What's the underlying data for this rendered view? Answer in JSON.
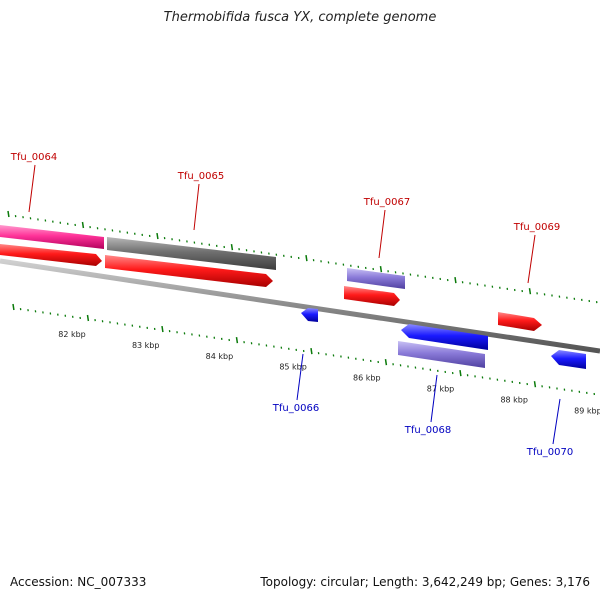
{
  "title": "Thermobifida fusca YX, complete genome",
  "footer": {
    "accession": "Accession: NC_007333",
    "summary": "Topology: circular; Length: 3,642,249 bp; Genes: 3,176"
  },
  "colors": {
    "forward_label": "#c00000",
    "reverse_label": "#0000c0",
    "tick": "#0a7a0a",
    "backbone": "#888888",
    "cds": "#ff1a1a",
    "gene_forward": "#8a7ad8",
    "gene_reverse": "#1a1aff",
    "pink": "#ff3399",
    "gray": "#707070"
  },
  "scale_labels": [
    "82 kbp",
    "83 kbp",
    "84 kbp",
    "85 kbp",
    "86 kbp",
    "87 kbp",
    "88 kbp",
    "89 kbp"
  ],
  "genes": [
    {
      "id": "Tfu_0064",
      "strand": "forward"
    },
    {
      "id": "Tfu_0065",
      "strand": "forward"
    },
    {
      "id": "Tfu_0066",
      "strand": "reverse"
    },
    {
      "id": "Tfu_0067",
      "strand": "forward"
    },
    {
      "id": "Tfu_0068",
      "strand": "reverse"
    },
    {
      "id": "Tfu_0069",
      "strand": "forward"
    },
    {
      "id": "Tfu_0070",
      "strand": "reverse"
    }
  ]
}
